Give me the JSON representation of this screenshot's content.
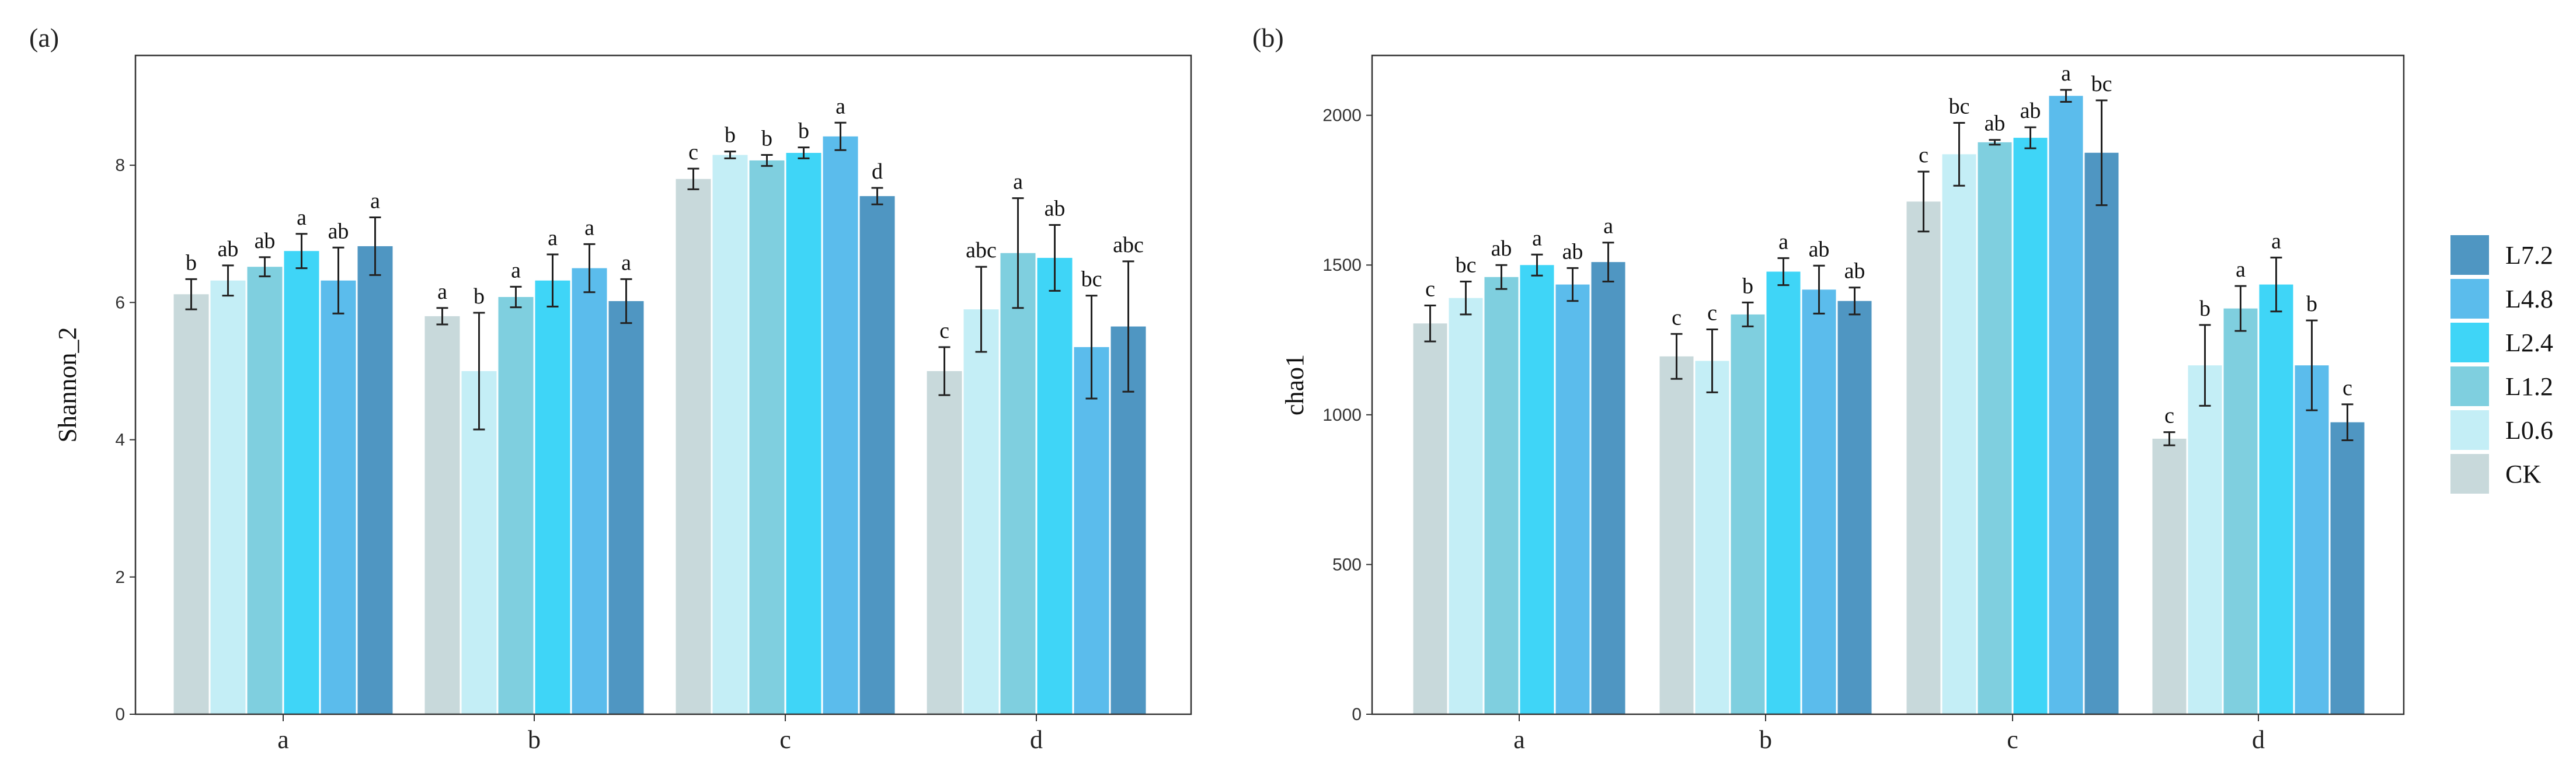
{
  "chart_data": [
    {
      "type": "bar",
      "panel_label": "(a)",
      "ylabel": "Shannon_2",
      "xlabel": "",
      "ylim": [
        0,
        9.6
      ],
      "yticks": [
        0,
        2,
        4,
        6,
        8
      ],
      "categories": [
        "a",
        "b",
        "c",
        "d"
      ],
      "series": [
        {
          "name": "CK",
          "values": [
            6.12,
            5.8,
            7.8,
            5.0
          ],
          "errors": [
            0.22,
            0.12,
            0.15,
            0.35
          ],
          "letters": [
            "b",
            "a",
            "c",
            "c"
          ]
        },
        {
          "name": "L0.6",
          "values": [
            6.32,
            5.0,
            8.15,
            5.9
          ],
          "errors": [
            0.22,
            0.85,
            0.05,
            0.62
          ],
          "letters": [
            "ab",
            "b",
            "b",
            "abc"
          ]
        },
        {
          "name": "L1.2",
          "values": [
            6.52,
            6.08,
            8.07,
            6.72
          ],
          "errors": [
            0.14,
            0.15,
            0.08,
            0.8
          ],
          "letters": [
            "ab",
            "a",
            "b",
            "a"
          ]
        },
        {
          "name": "L2.4",
          "values": [
            6.75,
            6.32,
            8.18,
            6.65
          ],
          "errors": [
            0.25,
            0.38,
            0.08,
            0.48
          ],
          "letters": [
            "a",
            "a",
            "b",
            "ab"
          ]
        },
        {
          "name": "L4.8",
          "values": [
            6.32,
            6.5,
            8.42,
            5.35
          ],
          "errors": [
            0.48,
            0.35,
            0.2,
            0.75
          ],
          "letters": [
            "ab",
            "a",
            "a",
            "bc"
          ]
        },
        {
          "name": "L7.2",
          "values": [
            6.82,
            6.02,
            7.55,
            5.65
          ],
          "errors": [
            0.42,
            0.32,
            0.12,
            0.95
          ],
          "letters": [
            "a",
            "a",
            "d",
            "abc"
          ]
        }
      ]
    },
    {
      "type": "bar",
      "panel_label": "(b)",
      "ylabel": "chao1",
      "xlabel": "",
      "ylim": [
        0,
        2200
      ],
      "yticks": [
        0,
        500,
        1000,
        1500,
        2000
      ],
      "categories": [
        "a",
        "b",
        "c",
        "d"
      ],
      "series": [
        {
          "name": "CK",
          "values": [
            1305,
            1195,
            1712,
            920
          ],
          "errors": [
            60,
            75,
            100,
            22
          ],
          "letters": [
            "c",
            "c",
            "c",
            "c"
          ]
        },
        {
          "name": "L0.6",
          "values": [
            1390,
            1180,
            1870,
            1165
          ],
          "errors": [
            55,
            105,
            105,
            135
          ],
          "letters": [
            "bc",
            "c",
            "bc",
            "b"
          ]
        },
        {
          "name": "L1.2",
          "values": [
            1460,
            1335,
            1910,
            1355
          ],
          "errors": [
            40,
            40,
            8,
            75
          ],
          "letters": [
            "ab",
            "b",
            "ab",
            "a"
          ]
        },
        {
          "name": "L2.4",
          "values": [
            1500,
            1478,
            1925,
            1435
          ],
          "errors": [
            35,
            45,
            35,
            90
          ],
          "letters": [
            "a",
            "a",
            "ab",
            "a"
          ]
        },
        {
          "name": "L4.8",
          "values": [
            1435,
            1418,
            2065,
            1165
          ],
          "errors": [
            55,
            80,
            20,
            150
          ],
          "letters": [
            "ab",
            "ab",
            "a",
            "b"
          ]
        },
        {
          "name": "L7.2",
          "values": [
            1510,
            1380,
            1875,
            975
          ],
          "errors": [
            65,
            45,
            175,
            60
          ],
          "letters": [
            "a",
            "ab",
            "bc",
            "c"
          ]
        }
      ]
    }
  ],
  "legend": {
    "placement": "right",
    "items": [
      {
        "name": "L7.2",
        "color": "#4f96c2"
      },
      {
        "name": "L4.8",
        "color": "#5bbcec"
      },
      {
        "name": "L2.4",
        "color": "#3fd5f7"
      },
      {
        "name": "L1.2",
        "color": "#7fcfdf"
      },
      {
        "name": "L0.6",
        "color": "#c4eef6"
      },
      {
        "name": "CK",
        "color": "#c8d9db"
      }
    ]
  },
  "series_colors": {
    "CK": "#c8d9db",
    "L0.6": "#c4eef6",
    "L1.2": "#7fcfdf",
    "L2.4": "#3fd5f7",
    "L4.8": "#5bbcec",
    "L7.2": "#4f96c2"
  }
}
